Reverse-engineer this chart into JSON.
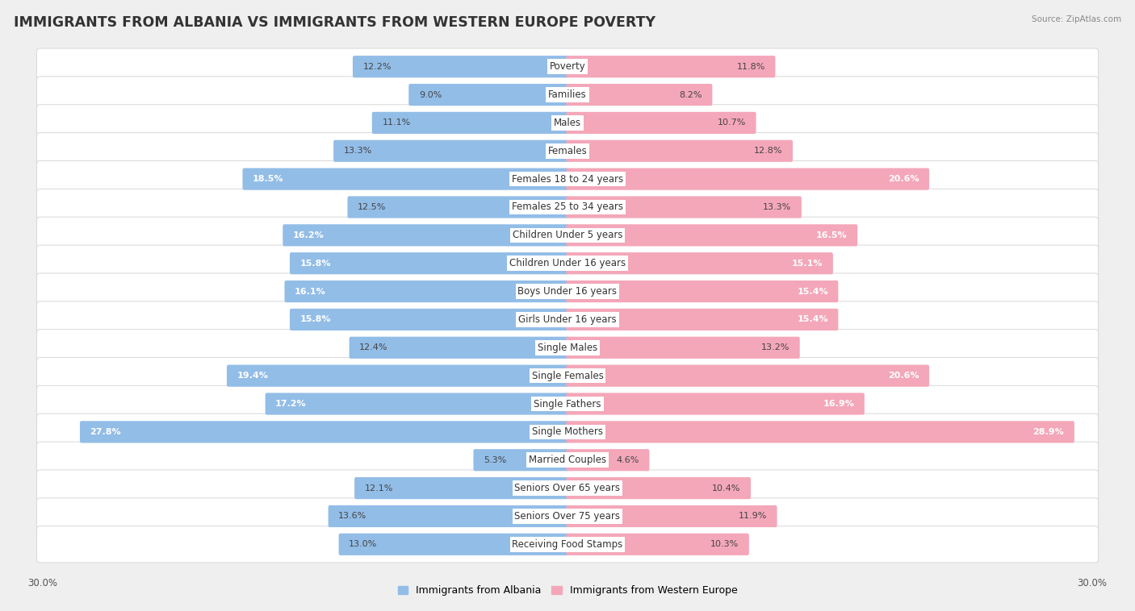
{
  "title": "IMMIGRANTS FROM ALBANIA VS IMMIGRANTS FROM WESTERN EUROPE POVERTY",
  "source": "Source: ZipAtlas.com",
  "categories": [
    "Poverty",
    "Families",
    "Males",
    "Females",
    "Females 18 to 24 years",
    "Females 25 to 34 years",
    "Children Under 5 years",
    "Children Under 16 years",
    "Boys Under 16 years",
    "Girls Under 16 years",
    "Single Males",
    "Single Females",
    "Single Fathers",
    "Single Mothers",
    "Married Couples",
    "Seniors Over 65 years",
    "Seniors Over 75 years",
    "Receiving Food Stamps"
  ],
  "albania_values": [
    12.2,
    9.0,
    11.1,
    13.3,
    18.5,
    12.5,
    16.2,
    15.8,
    16.1,
    15.8,
    12.4,
    19.4,
    17.2,
    27.8,
    5.3,
    12.1,
    13.6,
    13.0
  ],
  "western_europe_values": [
    11.8,
    8.2,
    10.7,
    12.8,
    20.6,
    13.3,
    16.5,
    15.1,
    15.4,
    15.4,
    13.2,
    20.6,
    16.9,
    28.9,
    4.6,
    10.4,
    11.9,
    10.3
  ],
  "albania_color": "#92bde7",
  "western_europe_color": "#f4a7b9",
  "background_color": "#efefef",
  "row_bg_color": "#ffffff",
  "row_border_color": "#d8d8d8",
  "max_value": 30.0,
  "bar_height": 0.62,
  "category_label_fontsize": 8.5,
  "value_fontsize": 8.0,
  "title_fontsize": 12.5,
  "legend_fontsize": 9,
  "axis_label_fontsize": 8.5,
  "white_text_threshold": 14.0
}
